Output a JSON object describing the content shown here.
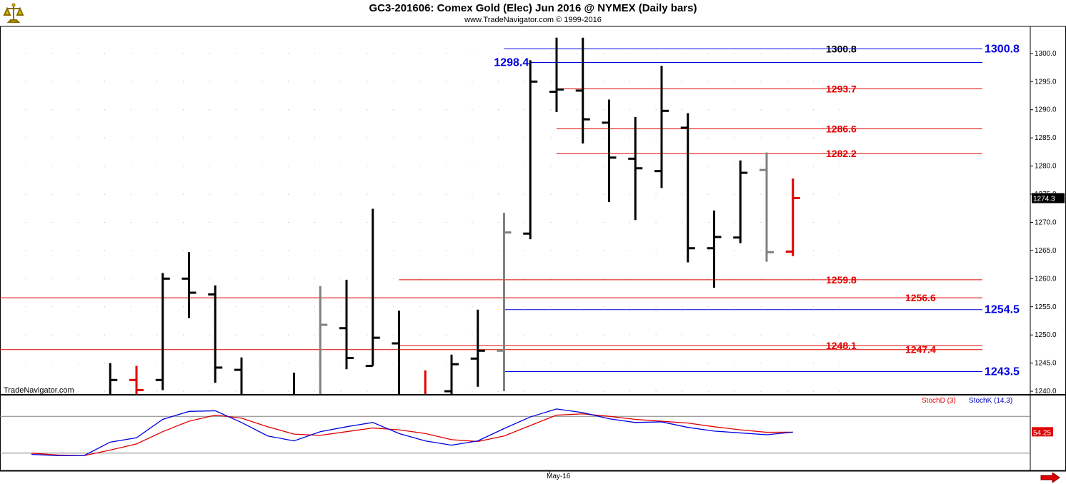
{
  "title": "GC3-201606:  Comex Gold (Elec) Jun 2016 @ NYMEX  (Daily bars)",
  "subtitle": "www.TradeNavigator.com © 1999-2016",
  "watermark": "TradeNavigator.com",
  "colors": {
    "up": "#000000",
    "down": "#000000",
    "neutral": "#808080",
    "last": "#e00000",
    "red_line": "#e00000",
    "blue_line": "#0000e0",
    "stoch_d": "#e00000",
    "stoch_k": "#0000e0",
    "axis_text": "#000000",
    "grid": "#b0b0b0"
  },
  "icons": {
    "logo": "trade-navigator-logo-icon",
    "nav": "scroll-right-arrow-icon"
  },
  "chart_data": {
    "type": "ohlc",
    "ylim": [
      1239.5,
      1304.8
    ],
    "y_ticks": [
      1240,
      1245,
      1250,
      1255,
      1260,
      1265,
      1270,
      1275,
      1280,
      1285,
      1290,
      1295,
      1300
    ],
    "y_tick_labels": [
      "1240.0",
      "1245.0",
      "1250.0",
      "1255.0",
      "1260.0",
      "1265.0",
      "1270.0",
      "1275.0",
      "1280.0",
      "1285.0",
      "1290.0",
      "1295.0",
      "1300.0"
    ],
    "last_price_label": "1274.3",
    "last_price": 1274.3,
    "x_label": "May-16",
    "x_label_index": 20,
    "bars": [
      {
        "i": 3,
        "o": 1238.5,
        "h": 1245.0,
        "l": 1236.0,
        "c": 1242.0,
        "color": "black"
      },
      {
        "i": 4,
        "o": 1242.0,
        "h": 1244.5,
        "l": 1237.0,
        "c": 1240.2,
        "color": "red"
      },
      {
        "i": 5,
        "o": 1242.0,
        "h": 1261.0,
        "l": 1240.2,
        "c": 1260.0,
        "color": "black"
      },
      {
        "i": 6,
        "o": 1260.0,
        "h": 1264.7,
        "l": 1253.0,
        "c": 1257.5,
        "color": "black"
      },
      {
        "i": 7,
        "o": 1257.2,
        "h": 1258.8,
        "l": 1241.5,
        "c": 1244.2,
        "color": "black"
      },
      {
        "i": 8,
        "o": 1243.8,
        "h": 1246.0,
        "l": 1236.0,
        "c": 1239.0,
        "color": "black"
      },
      {
        "i": 10,
        "o": 1238.0,
        "h": 1243.3,
        "l": 1236.5,
        "c": 1238.5,
        "color": "black"
      },
      {
        "i": 11,
        "o": 1238.5,
        "h": 1258.7,
        "l": 1236.5,
        "c": 1251.8,
        "color": "gray"
      },
      {
        "i": 12,
        "o": 1251.2,
        "h": 1259.8,
        "l": 1243.9,
        "c": 1245.9,
        "color": "black"
      },
      {
        "i": 13,
        "o": 1244.5,
        "h": 1272.4,
        "l": 1244.5,
        "c": 1249.5,
        "color": "black"
      },
      {
        "i": 14,
        "o": 1248.5,
        "h": 1254.3,
        "l": 1237.0,
        "c": 1238.0,
        "color": "black"
      },
      {
        "i": 15,
        "o": 1238.5,
        "h": 1243.7,
        "l": 1236.5,
        "c": 1237.5,
        "color": "red"
      },
      {
        "i": 16,
        "o": 1240.0,
        "h": 1246.5,
        "l": 1237.0,
        "c": 1244.8,
        "color": "black"
      },
      {
        "i": 17,
        "o": 1245.8,
        "h": 1254.5,
        "l": 1240.8,
        "c": 1247.2,
        "color": "black"
      },
      {
        "i": 18,
        "o": 1247.2,
        "h": 1271.7,
        "l": 1240.0,
        "c": 1268.2,
        "color": "gray"
      },
      {
        "i": 19,
        "o": 1268.0,
        "h": 1298.8,
        "l": 1267.0,
        "c": 1295.0,
        "color": "black"
      },
      {
        "i": 20,
        "o": 1293.2,
        "h": 1302.8,
        "l": 1289.6,
        "c": 1293.6,
        "color": "black"
      },
      {
        "i": 21,
        "o": 1293.4,
        "h": 1302.8,
        "l": 1284.0,
        "c": 1288.3,
        "color": "black"
      },
      {
        "i": 22,
        "o": 1287.7,
        "h": 1291.8,
        "l": 1273.6,
        "c": 1281.5,
        "color": "black"
      },
      {
        "i": 23,
        "o": 1281.3,
        "h": 1288.7,
        "l": 1270.4,
        "c": 1279.6,
        "color": "black"
      },
      {
        "i": 24,
        "o": 1279.1,
        "h": 1297.8,
        "l": 1276.1,
        "c": 1289.8,
        "color": "black"
      },
      {
        "i": 25,
        "o": 1286.8,
        "h": 1289.4,
        "l": 1262.9,
        "c": 1265.4,
        "color": "black"
      },
      {
        "i": 26,
        "o": 1265.4,
        "h": 1272.1,
        "l": 1258.4,
        "c": 1267.4,
        "color": "black"
      },
      {
        "i": 27,
        "o": 1267.3,
        "h": 1281.0,
        "l": 1266.3,
        "c": 1278.8,
        "color": "black"
      },
      {
        "i": 28,
        "o": 1279.3,
        "h": 1282.4,
        "l": 1263.0,
        "c": 1264.7,
        "color": "gray"
      },
      {
        "i": 29,
        "o": 1264.8,
        "h": 1277.8,
        "l": 1264.0,
        "c": 1274.3,
        "color": "red"
      }
    ],
    "levels": [
      {
        "value": 1300.8,
        "color": "black",
        "from_i": 18,
        "label": "1300.8",
        "label_color": "black",
        "label_pos": "inner"
      },
      {
        "value": 1300.8,
        "color": "blue",
        "from_i": 18,
        "label": "1300.8",
        "label_color": "blue",
        "label_pos": "right"
      },
      {
        "value": 1298.4,
        "color": "blue",
        "from_i": 19,
        "label": "1298.4",
        "label_color": "blue",
        "label_pos": "left"
      },
      {
        "value": 1293.7,
        "color": "red",
        "from_i": 20,
        "label": "1293.7",
        "label_color": "red",
        "label_pos": "inner"
      },
      {
        "value": 1286.6,
        "color": "red",
        "from_i": 20,
        "label": "1286.6",
        "label_color": "red",
        "label_pos": "inner"
      },
      {
        "value": 1282.2,
        "color": "red",
        "from_i": 20,
        "label": "1282.2",
        "label_color": "red",
        "label_pos": "inner"
      },
      {
        "value": 1259.8,
        "color": "red",
        "from_i": 14,
        "label": "1259.8",
        "label_color": "red",
        "label_pos": "inner"
      },
      {
        "value": 1256.6,
        "color": "red",
        "from_i": -1,
        "label": "1256.6",
        "label_color": "red",
        "label_pos": "mid"
      },
      {
        "value": 1254.5,
        "color": "blue",
        "from_i": 18,
        "label": "1254.5",
        "label_color": "blue",
        "label_pos": "right"
      },
      {
        "value": 1248.1,
        "color": "red",
        "from_i": 14,
        "label": "1248.1",
        "label_color": "red",
        "label_pos": "inner"
      },
      {
        "value": 1247.4,
        "color": "red",
        "from_i": -1,
        "label": "1247.4",
        "label_color": "red",
        "label_pos": "mid"
      },
      {
        "value": 1243.5,
        "color": "blue",
        "from_i": 18,
        "label": "1243.5",
        "label_color": "blue",
        "label_pos": "right"
      }
    ],
    "stochastic": {
      "d_label": "StochD (3)",
      "k_label": "StochK (14,3)",
      "last_label": "54.25",
      "ylim": [
        0,
        100
      ],
      "levels": [
        80,
        20
      ],
      "k": [
        18,
        16,
        16,
        38,
        45,
        75,
        88,
        89,
        70,
        48,
        40,
        55,
        63,
        70,
        52,
        40,
        33,
        40,
        60,
        79,
        92,
        86,
        76,
        70,
        71,
        62,
        56,
        53,
        50,
        54.25
      ],
      "d": [
        20,
        17,
        16,
        25,
        35,
        55,
        72,
        82,
        77,
        63,
        51,
        49,
        55,
        61,
        58,
        52,
        42,
        39,
        48,
        65,
        82,
        84,
        80,
        75,
        72,
        69,
        63,
        58,
        54,
        54.25
      ]
    }
  }
}
